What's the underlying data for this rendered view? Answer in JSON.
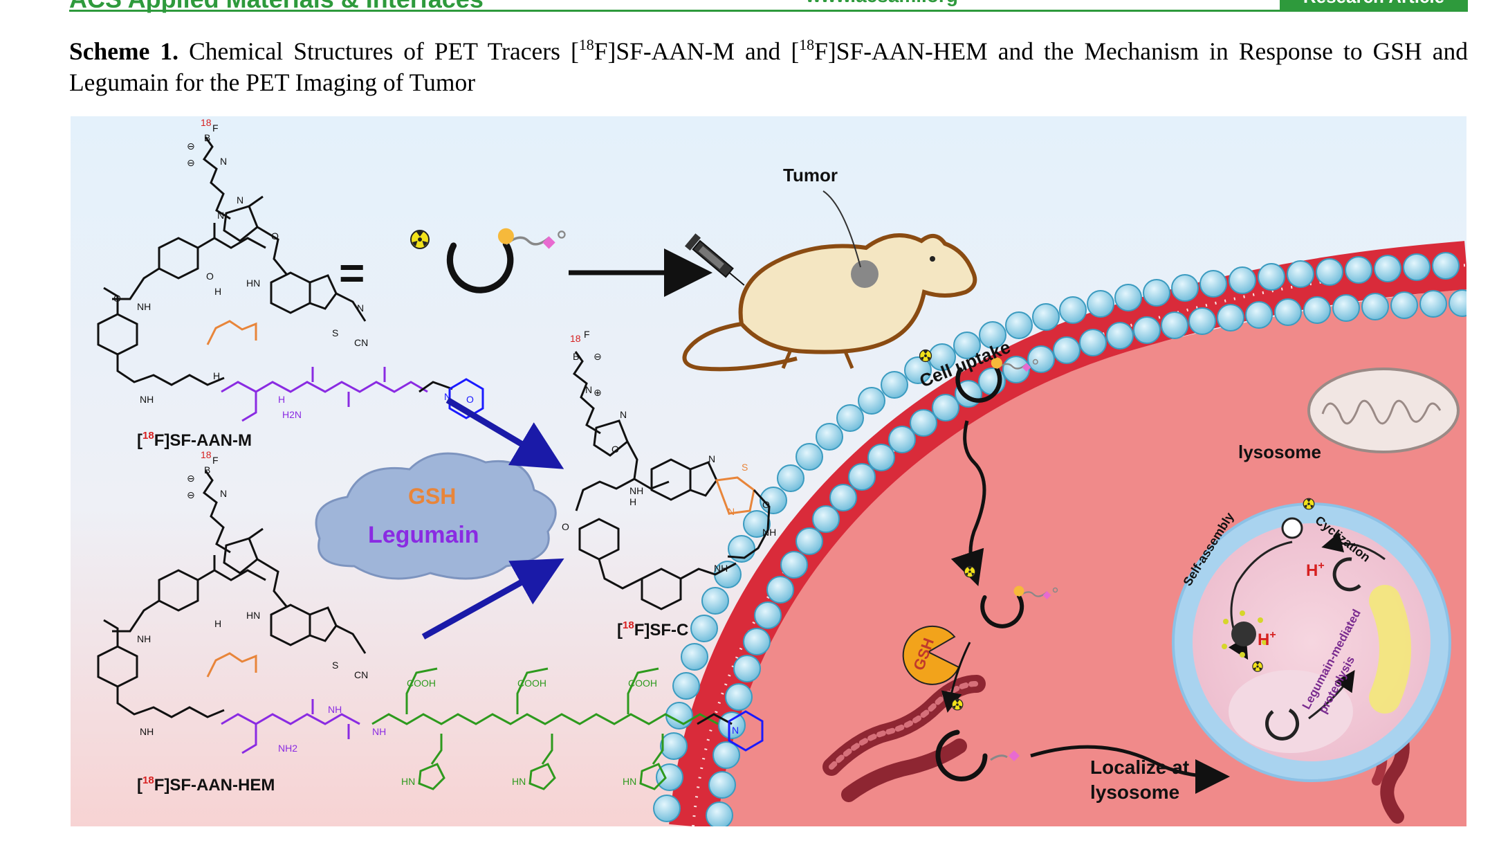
{
  "header": {
    "journal": "ACS Applied Materials & Interfaces",
    "url": "www.acsami.org",
    "article_type": "Research Article"
  },
  "caption": {
    "label": "Scheme 1.",
    "text_a": " Chemical Structures of PET Tracers [",
    "sup_a": "18",
    "text_b": "F]SF-AAN-M and [",
    "sup_b": "18",
    "text_c": "F]SF-AAN-HEM and the Mechanism in Response to GSH and Legumain for the PET Imaging of Tumor"
  },
  "figure": {
    "compound_m": {
      "iso": "18",
      "prefix": "[",
      "suffix": "F]SF-AAN-M"
    },
    "compound_hem": {
      "iso": "18",
      "prefix": "[",
      "suffix": "F]SF-AAN-HEM"
    },
    "compound_c": {
      "iso": "18",
      "prefix": "[",
      "suffix": "F]SF-C"
    },
    "equals": "=",
    "cloud_gsh": "GSH",
    "cloud_legumain": "Legumain",
    "tumor": "Tumor",
    "cell_uptake": "Cell uptake",
    "lysosome": "lysosome",
    "localize_line1": "Localize at",
    "localize_line2": "lysosome",
    "self_assembly": "Self-assembly",
    "cyclization": "Cyclization",
    "proteolysis_line1": "Legumain-mediated",
    "proteolysis_line2": "proteolysis",
    "h_plus": "H",
    "plus": "+",
    "gsh_icon": "GSH",
    "atoms": {
      "nh": "NH",
      "hn": "HN",
      "h": "H",
      "n": "N",
      "s": "S",
      "o": "O",
      "cn": "CN",
      "f": "F",
      "b": "B",
      "h2n": "H2N",
      "nh2": "NH2",
      "cooh": "COOH",
      "plus_sym": "⊕",
      "minus_sym": "⊖"
    },
    "colors": {
      "purple_peptide": "#8a2be2",
      "green_peptide": "#2e9a1e",
      "orange_linker": "#e8853a",
      "blue_morpholine": "#1a1aff",
      "arrow_blue": "#1a1aa8",
      "membrane_red": "#d92b3a",
      "head_blue": "#7cc4e0",
      "cytoplasm": "#f08a8a",
      "header_green": "#2e9a3c"
    }
  }
}
